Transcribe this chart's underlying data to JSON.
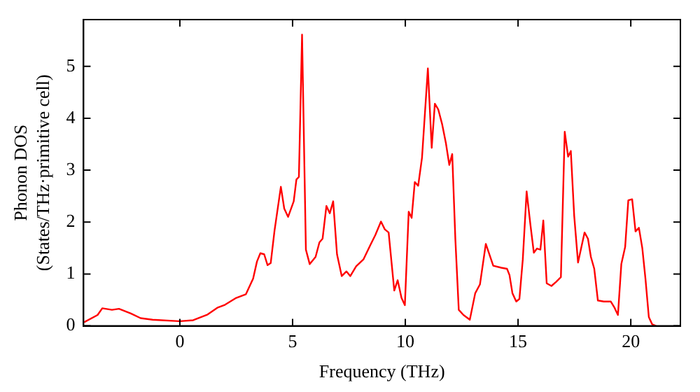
{
  "chart_data": {
    "type": "line",
    "xlabel": "Frequency (THz)",
    "ylabel": "Phonon DOS\n(States/THz·primitive cell)",
    "xlim": [
      -4.27,
      22.2
    ],
    "ylim": [
      0,
      5.9
    ],
    "xticks": [
      0,
      5,
      10,
      15,
      20
    ],
    "yticks": [
      0,
      1,
      2,
      3,
      4,
      5
    ],
    "grid": false,
    "legend": false,
    "marker": "none",
    "line_style": "solid",
    "series": [
      {
        "color": "#ff0000",
        "x": [
          -4.25,
          -3.65,
          -3.44,
          -3.01,
          -2.7,
          -2.17,
          -1.74,
          -1.21,
          0,
          0.59,
          1.23,
          1.66,
          1.97,
          2.5,
          2.93,
          3.25,
          3.42,
          3.57,
          3.74,
          3.89,
          4.03,
          4.2,
          4.48,
          4.63,
          4.8,
          5.05,
          5.17,
          5.28,
          5.42,
          5.59,
          5.76,
          6.02,
          6.19,
          6.33,
          6.5,
          6.65,
          6.8,
          6.97,
          7.18,
          7.39,
          7.56,
          7.82,
          8.14,
          8.45,
          8.67,
          8.92,
          9.09,
          9.26,
          9.51,
          9.66,
          9.83,
          9.98,
          10.15,
          10.28,
          10.42,
          10.57,
          10.74,
          11.0,
          11.17,
          11.31,
          11.46,
          11.63,
          11.8,
          11.95,
          12.08,
          12.22,
          12.37,
          12.58,
          12.86,
          13.1,
          13.31,
          13.57,
          13.9,
          14.26,
          14.51,
          14.62,
          14.75,
          14.92,
          15.06,
          15.21,
          15.38,
          15.55,
          15.7,
          15.84,
          15.99,
          16.12,
          16.27,
          16.48,
          16.69,
          16.9,
          17.07,
          17.22,
          17.34,
          17.49,
          17.66,
          17.81,
          17.95,
          18.1,
          18.23,
          18.38,
          18.54,
          18.8,
          19.11,
          19.28,
          19.43,
          19.58,
          19.75,
          19.89,
          20.06,
          20.21,
          20.36,
          20.51,
          20.65,
          20.8,
          20.95,
          21.12
        ],
        "values": [
          0.07,
          0.21,
          0.34,
          0.31,
          0.33,
          0.24,
          0.15,
          0.12,
          0.09,
          0.11,
          0.22,
          0.35,
          0.4,
          0.54,
          0.61,
          0.91,
          1.24,
          1.4,
          1.38,
          1.17,
          1.21,
          1.84,
          2.68,
          2.26,
          2.1,
          2.4,
          2.82,
          2.87,
          5.61,
          1.47,
          1.19,
          1.33,
          1.61,
          1.68,
          2.31,
          2.17,
          2.4,
          1.38,
          0.96,
          1.05,
          0.96,
          1.15,
          1.28,
          1.56,
          1.75,
          2.01,
          1.86,
          1.8,
          0.68,
          0.88,
          0.54,
          0.4,
          2.2,
          2.08,
          2.77,
          2.7,
          3.24,
          4.96,
          3.43,
          4.28,
          4.17,
          3.89,
          3.52,
          3.1,
          3.31,
          1.66,
          0.31,
          0.21,
          0.12,
          0.63,
          0.8,
          1.58,
          1.16,
          1.12,
          1.1,
          0.98,
          0.63,
          0.47,
          0.52,
          1.28,
          2.59,
          1.94,
          1.41,
          1.49,
          1.47,
          2.03,
          0.82,
          0.77,
          0.85,
          0.94,
          3.74,
          3.26,
          3.37,
          2.12,
          1.22,
          1.52,
          1.8,
          1.68,
          1.33,
          1.1,
          0.49,
          0.47,
          0.47,
          0.35,
          0.21,
          1.19,
          1.52,
          2.42,
          2.44,
          1.82,
          1.89,
          1.5,
          0.91,
          0.17,
          0.03,
          0
        ]
      }
    ]
  }
}
